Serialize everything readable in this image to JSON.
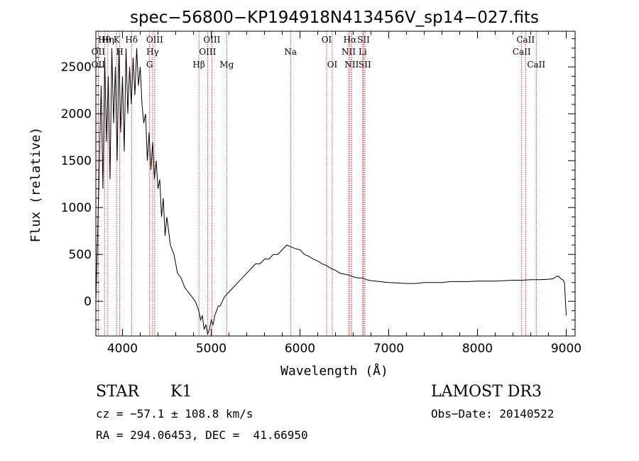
{
  "title": "spec−56800−KP194918N413456V_sp14−027.fits",
  "info": {
    "object_class": "STAR",
    "subclass": "K1",
    "survey": "LAMOST DR3",
    "cz": "cz = −57.1 ± 108.8 km/s",
    "obs_date": "Obs−Date: 20140522",
    "coords": "RA = 294.06453, DEC =  41.66950"
  },
  "chart_data": {
    "type": "line",
    "title": "spec−56800−KP194918N413456V_sp14−027.fits",
    "xlabel": "Wavelength (Å)",
    "ylabel": "Flux (relative)",
    "xlim": [
      3700,
      9100
    ],
    "ylim": [
      -370,
      2880
    ],
    "x_ticks": [
      4000,
      5000,
      6000,
      7000,
      8000,
      9000
    ],
    "y_ticks": [
      0,
      500,
      1000,
      1500,
      2000,
      2500
    ],
    "grid": false,
    "colors": {
      "spectrum": "#000000",
      "line_markers": "#c00000",
      "axes": "#000000"
    },
    "series": [
      {
        "x": [
          3700,
          3720,
          3740,
          3760,
          3780,
          3800,
          3820,
          3840,
          3860,
          3880,
          3900,
          3920,
          3940,
          3960,
          3980,
          4000,
          4020,
          4040,
          4060,
          4080,
          4100,
          4120,
          4140,
          4160,
          4180,
          4200,
          4220,
          4240,
          4260,
          4280,
          4300,
          4320,
          4340,
          4360,
          4380,
          4400,
          4420,
          4440,
          4460,
          4480,
          4500,
          4540,
          4580,
          4620,
          4660,
          4700,
          4740,
          4780,
          4820,
          4860,
          4880,
          4900,
          4920,
          4940,
          4960,
          4980,
          5000,
          5020,
          5040,
          5060,
          5080,
          5100,
          5150,
          5200,
          5250,
          5300,
          5350,
          5400,
          5450,
          5500,
          5550,
          5600,
          5650,
          5700,
          5750,
          5800,
          5850,
          5900,
          5950,
          6000,
          6050,
          6100,
          6150,
          6200,
          6250,
          6300,
          6350,
          6400,
          6450,
          6500,
          6550,
          6600,
          6650,
          6700,
          6750,
          6800,
          6900,
          7000,
          7100,
          7200,
          7300,
          7400,
          7500,
          7600,
          7700,
          7800,
          7900,
          8000,
          8100,
          8200,
          8300,
          8400,
          8500,
          8600,
          8700,
          8800,
          8850,
          8900,
          8920,
          8940,
          8960,
          8980,
          9000
        ],
        "y": [
          0,
          700,
          1500,
          2300,
          1200,
          2600,
          1700,
          2400,
          1300,
          2700,
          1900,
          2500,
          1500,
          2700,
          1800,
          2400,
          1600,
          2700,
          2000,
          2500,
          2100,
          2600,
          2200,
          2700,
          2300,
          2500,
          2100,
          1900,
          2000,
          1500,
          1800,
          1400,
          1700,
          1300,
          1500,
          1200,
          1300,
          900,
          1100,
          700,
          900,
          600,
          500,
          300,
          250,
          150,
          100,
          50,
          0,
          -100,
          -200,
          -150,
          -300,
          -250,
          -350,
          -300,
          -200,
          -250,
          -150,
          -100,
          -50,
          -50,
          50,
          100,
          150,
          200,
          250,
          300,
          350,
          400,
          400,
          450,
          450,
          500,
          500,
          550,
          600,
          580,
          560,
          550,
          500,
          480,
          450,
          430,
          400,
          380,
          350,
          330,
          300,
          290,
          280,
          260,
          250,
          250,
          230,
          220,
          210,
          200,
          195,
          190,
          190,
          200,
          200,
          200,
          210,
          210,
          210,
          215,
          215,
          215,
          220,
          225,
          225,
          230,
          230,
          235,
          240,
          270,
          260,
          240,
          230,
          200,
          -150
        ]
      }
    ],
    "line_markers": [
      {
        "label": "OII",
        "x": 3727,
        "row": 1
      },
      {
        "label": "OΙI",
        "x": 3727,
        "row": 2
      },
      {
        "label": "Hθ",
        "x": 3798,
        "row": 0
      },
      {
        "label": "Hη",
        "x": 3835,
        "row": 0
      },
      {
        "label": "K",
        "x": 3934,
        "row": 0
      },
      {
        "label": "H",
        "x": 3969,
        "row": 1
      },
      {
        "label": "Hδ",
        "x": 4102,
        "row": 0
      },
      {
        "label": "G",
        "x": 4305,
        "row": 2
      },
      {
        "label": "Hγ",
        "x": 4340,
        "row": 1
      },
      {
        "label": "OIII",
        "x": 4363,
        "row": 0
      },
      {
        "label": "Hβ",
        "x": 4861,
        "row": 2
      },
      {
        "label": "OIII",
        "x": 4959,
        "row": 1
      },
      {
        "label": "OIII",
        "x": 5007,
        "row": 0
      },
      {
        "label": "Mg",
        "x": 5175,
        "row": 2
      },
      {
        "label": "Na",
        "x": 5894,
        "row": 1
      },
      {
        "label": "OI",
        "x": 6300,
        "row": 0
      },
      {
        "label": "OI",
        "x": 6364,
        "row": 2
      },
      {
        "label": "NII",
        "x": 6548,
        "row": 1
      },
      {
        "label": "Hα",
        "x": 6563,
        "row": 0
      },
      {
        "label": "NII",
        "x": 6583,
        "row": 2
      },
      {
        "label": "Li",
        "x": 6707,
        "row": 1
      },
      {
        "label": "SII",
        "x": 6716,
        "row": 0
      },
      {
        "label": "SII",
        "x": 6731,
        "row": 2
      },
      {
        "label": "CaII",
        "x": 8498,
        "row": 1
      },
      {
        "label": "CaII",
        "x": 8542,
        "row": 0
      },
      {
        "label": "CaII",
        "x": 8662,
        "row": 2
      }
    ]
  }
}
